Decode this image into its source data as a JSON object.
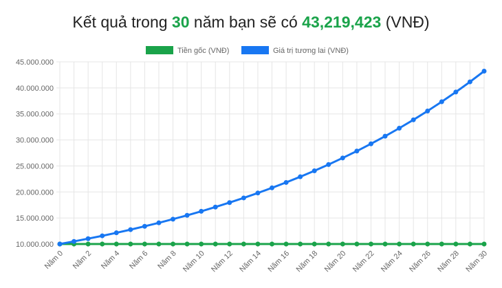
{
  "headline": {
    "prefix": "Kết quả trong",
    "years": "30",
    "middle": "năm bạn sẽ có",
    "amount": "43,219,423",
    "suffix": "(VNĐ)"
  },
  "colors": {
    "principal": "#1aa34a",
    "future_value": "#1877f2",
    "grid": "#e5e5e5",
    "text": "#666666"
  },
  "chart_data": {
    "type": "line",
    "title": "",
    "xlabel": "",
    "ylabel": "",
    "categories": [
      "Năm 0",
      "Năm 1",
      "Năm 2",
      "Năm 3",
      "Năm 4",
      "Năm 5",
      "Năm 6",
      "Năm 7",
      "Năm 8",
      "Năm 9",
      "Năm 10",
      "Năm 11",
      "Năm 12",
      "Năm 13",
      "Năm 14",
      "Năm 15",
      "Năm 16",
      "Năm 17",
      "Năm 18",
      "Năm 19",
      "Năm 20",
      "Năm 21",
      "Năm 22",
      "Năm 23",
      "Năm 24",
      "Năm 25",
      "Năm 26",
      "Năm 27",
      "Năm 28",
      "Năm 29",
      "Năm 30"
    ],
    "x_tick_labels": [
      "Năm 0",
      "Năm 2",
      "Năm 4",
      "Năm 6",
      "Năm 8",
      "Năm 10",
      "Năm 12",
      "Năm 14",
      "Năm 16",
      "Năm 18",
      "Năm 20",
      "Năm 22",
      "Năm 24",
      "Năm 26",
      "Năm 28",
      "Năm 30"
    ],
    "ylim": [
      10000000,
      45000000
    ],
    "y_tick_labels": [
      "10.000.000",
      "15.000.000",
      "20.000.000",
      "25.000.000",
      "30.000.000",
      "35.000.000",
      "40.000.000",
      "45.000.000"
    ],
    "y_ticks": [
      10000000,
      15000000,
      20000000,
      25000000,
      30000000,
      35000000,
      40000000,
      45000000
    ],
    "grid": true,
    "legend_position": "top",
    "series": [
      {
        "name": "Tiền gốc (VNĐ)",
        "color": "#1aa34a",
        "values": [
          10000000,
          10000000,
          10000000,
          10000000,
          10000000,
          10000000,
          10000000,
          10000000,
          10000000,
          10000000,
          10000000,
          10000000,
          10000000,
          10000000,
          10000000,
          10000000,
          10000000,
          10000000,
          10000000,
          10000000,
          10000000,
          10000000,
          10000000,
          10000000,
          10000000,
          10000000,
          10000000,
          10000000,
          10000000,
          10000000,
          10000000
        ]
      },
      {
        "name": "Giá trị tương lai (VNĐ)",
        "color": "#1877f2",
        "values": [
          10000000,
          10500000,
          11025000,
          11576250,
          12155063,
          12762816,
          13400956,
          14071004,
          14774554,
          15513282,
          16288946,
          17103394,
          17958563,
          18856491,
          19799316,
          20789282,
          21828746,
          22920183,
          24066192,
          25269502,
          26532977,
          27859626,
          29252607,
          30715238,
          32250999,
          33863549,
          35556727,
          37334563,
          39201291,
          41161356,
          43219423
        ]
      }
    ]
  }
}
